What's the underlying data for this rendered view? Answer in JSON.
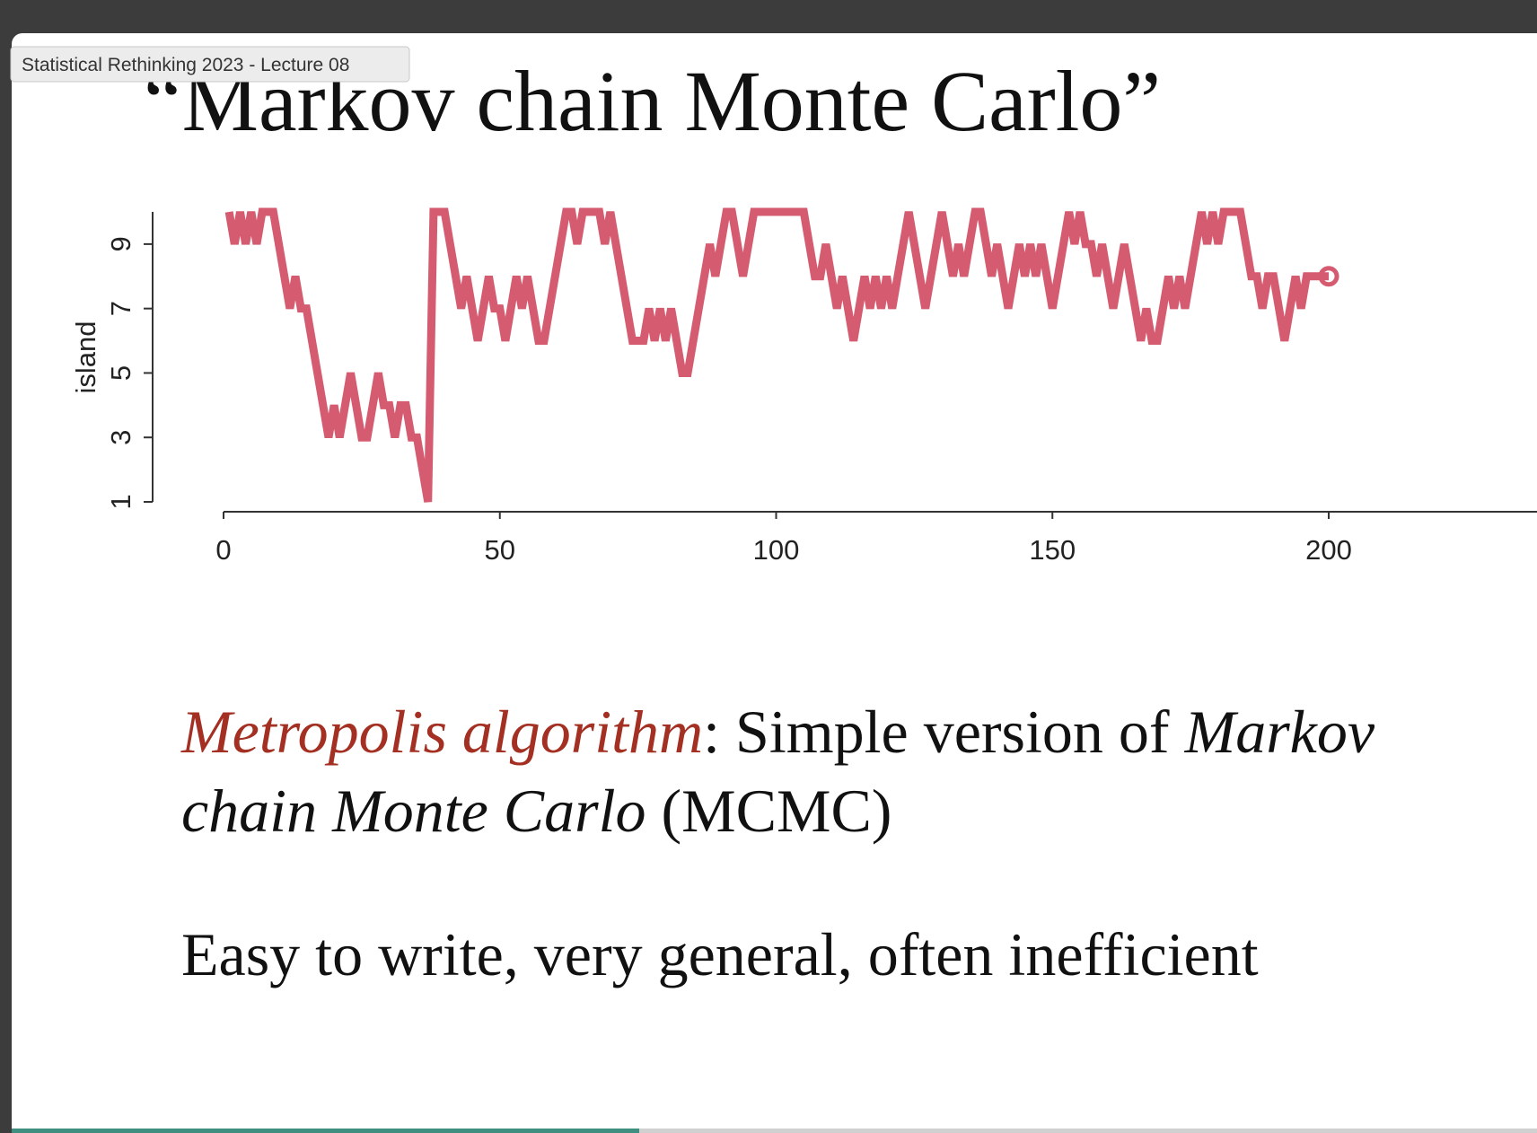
{
  "ui": {
    "tooltip": "Statistical Rethinking 2023 - Lecture 08"
  },
  "slide": {
    "title": "“Markov chain Monte Carlo”",
    "line1": {
      "term": "Metropolis algorithm",
      "text": ": Simple version of ",
      "italic": "Markov"
    },
    "line2": {
      "italic": "chain Monte Carlo",
      "text": " (MCMC)"
    },
    "line3": "Easy to write, very general, often inefficient"
  },
  "chart_data": {
    "type": "line",
    "y_label": "island",
    "color": "#d55c70",
    "x": [
      1,
      2,
      3,
      4,
      5,
      6,
      7,
      8,
      9,
      10,
      11,
      12,
      13,
      14,
      15,
      16,
      17,
      18,
      19,
      20,
      21,
      22,
      23,
      24,
      25,
      26,
      27,
      28,
      29,
      30,
      31,
      32,
      33,
      34,
      35,
      36,
      37,
      38,
      39,
      40,
      41,
      42,
      43,
      44,
      45,
      46,
      47,
      48,
      49,
      50,
      51,
      52,
      53,
      54,
      55,
      56,
      57,
      58,
      59,
      60,
      61,
      62,
      63,
      64,
      65,
      66,
      67,
      68,
      69,
      70,
      71,
      72,
      73,
      74,
      75,
      76,
      77,
      78,
      79,
      80,
      81,
      82,
      83,
      84,
      85,
      86,
      87,
      88,
      89,
      90,
      91,
      92,
      93,
      94,
      95,
      96,
      97,
      98,
      99,
      100,
      101,
      102,
      103,
      104,
      105,
      106,
      107,
      108,
      109,
      110,
      111,
      112,
      113,
      114,
      115,
      116,
      117,
      118,
      119,
      120,
      121,
      122,
      123,
      124,
      125,
      126,
      127,
      128,
      129,
      130,
      131,
      132,
      133,
      134,
      135,
      136,
      137,
      138,
      139,
      140,
      141,
      142,
      143,
      144,
      145,
      146,
      147,
      148,
      149,
      150,
      151,
      152,
      153,
      154,
      155,
      156,
      157,
      158,
      159,
      160,
      161,
      162,
      163,
      164,
      165,
      166,
      167,
      168,
      169,
      170,
      171,
      172,
      173,
      174,
      175,
      176,
      177,
      178,
      179,
      180,
      181,
      182,
      183,
      184,
      185,
      186,
      187,
      188,
      189,
      190,
      191,
      192,
      193,
      194,
      195,
      196,
      197,
      198,
      199,
      200
    ],
    "values": [
      10,
      9,
      10,
      9,
      10,
      9,
      10,
      10,
      10,
      9,
      8,
      7,
      8,
      7,
      7,
      6,
      5,
      4,
      3,
      4,
      3,
      4,
      5,
      4,
      3,
      3,
      4,
      5,
      4,
      4,
      3,
      4,
      4,
      3,
      3,
      2,
      1,
      10,
      10,
      10,
      9,
      8,
      7,
      8,
      7,
      6,
      7,
      8,
      7,
      7,
      6,
      7,
      8,
      7,
      8,
      7,
      6,
      6,
      7,
      8,
      9,
      10,
      10,
      9,
      10,
      10,
      10,
      10,
      9,
      10,
      9,
      8,
      7,
      6,
      6,
      6,
      7,
      6,
      7,
      6,
      7,
      6,
      5,
      5,
      6,
      7,
      8,
      9,
      8,
      9,
      10,
      10,
      9,
      8,
      9,
      10,
      10,
      10,
      10,
      10,
      10,
      10,
      10,
      10,
      10,
      9,
      8,
      8,
      9,
      8,
      7,
      8,
      7,
      6,
      7,
      8,
      7,
      8,
      7,
      8,
      7,
      8,
      9,
      10,
      9,
      8,
      7,
      8,
      9,
      10,
      9,
      8,
      9,
      8,
      9,
      10,
      10,
      9,
      8,
      9,
      8,
      7,
      8,
      9,
      8,
      9,
      8,
      9,
      8,
      7,
      8,
      9,
      10,
      9,
      10,
      9,
      9,
      8,
      9,
      8,
      7,
      8,
      9,
      8,
      7,
      6,
      7,
      6,
      6,
      7,
      8,
      7,
      8,
      7,
      8,
      9,
      10,
      9,
      10,
      9,
      10,
      10,
      10,
      10,
      9,
      8,
      8,
      7,
      8,
      8,
      7,
      6,
      7,
      8,
      7,
      8,
      8,
      8,
      8,
      8
    ],
    "xlim": [
      0,
      200
    ],
    "xticks": [
      0,
      50,
      100,
      150,
      200
    ],
    "ylim": [
      1,
      10
    ],
    "yticks": [
      1,
      3,
      5,
      7,
      9
    ]
  }
}
